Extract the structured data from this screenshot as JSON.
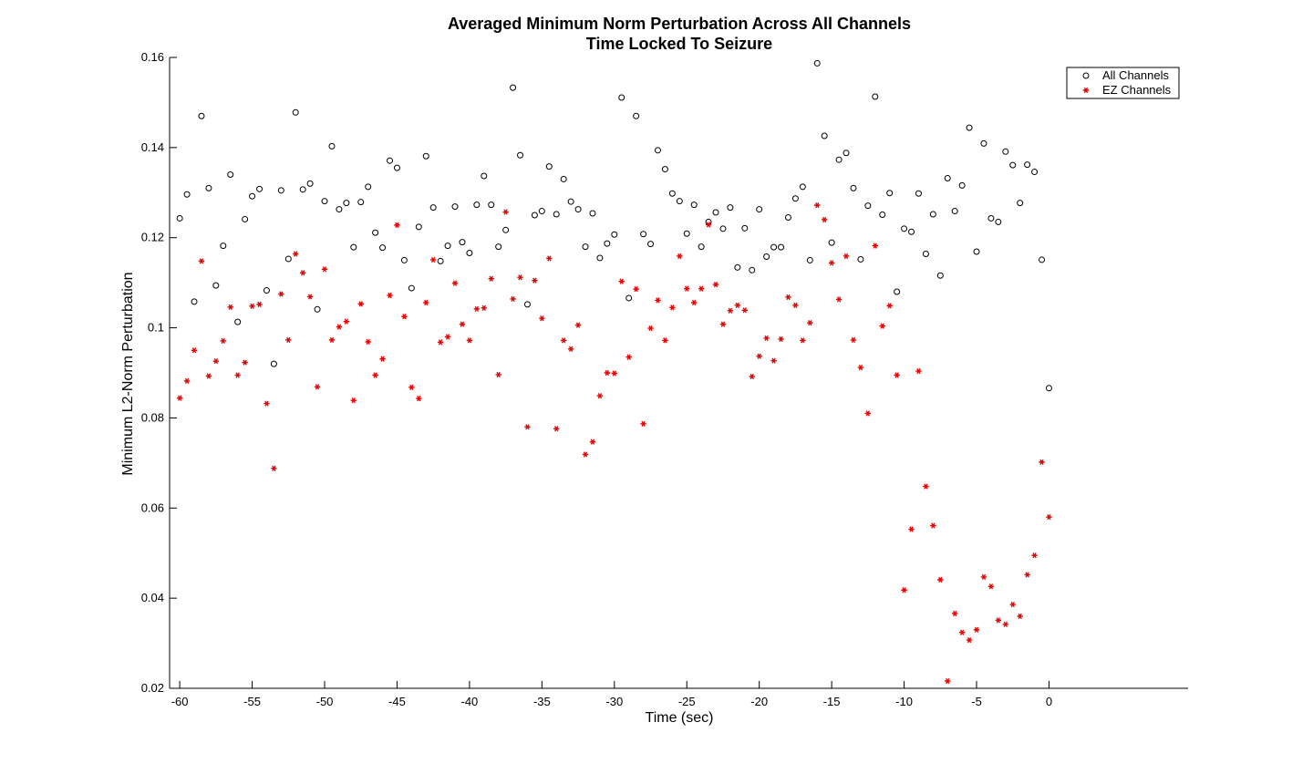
{
  "chart_data": {
    "type": "scatter",
    "title": [
      "Averaged Minimum Norm Perturbation Across All Channels",
      "Time Locked To Seizure"
    ],
    "xlabel": "Time (sec)",
    "ylabel": "Minimum L2-Norm Perturbation",
    "xlim": [
      -60.7,
      9.6
    ],
    "ylim": [
      0.02,
      0.16
    ],
    "xticks": [
      -60,
      -55,
      -50,
      -45,
      -40,
      -35,
      -30,
      -25,
      -20,
      -15,
      -10,
      -5,
      0
    ],
    "xtick_labels": [
      "-60",
      "-55",
      "-50",
      "-45",
      "-40",
      "-35",
      "-30",
      "-25",
      "-20",
      "-15",
      "-10",
      "-5",
      "0"
    ],
    "yticks": [
      0.02,
      0.04,
      0.06,
      0.08,
      0.1,
      0.12,
      0.14,
      0.16
    ],
    "ytick_labels": [
      "0.02",
      "0.04",
      "0.06",
      "0.08",
      "0.1",
      "0.12",
      "0.14",
      "0.16"
    ],
    "grid": false,
    "legend_position": "top-right",
    "x": [
      -60,
      -59.5,
      -59,
      -58.5,
      -58,
      -57.5,
      -57,
      -56.5,
      -56,
      -55.5,
      -55,
      -54.5,
      -54,
      -53.5,
      -53,
      -52.5,
      -52,
      -51.5,
      -51,
      -50.5,
      -50,
      -49.5,
      -49,
      -48.5,
      -48,
      -47.5,
      -47,
      -46.5,
      -46,
      -45.5,
      -45,
      -44.5,
      -44,
      -43.5,
      -43,
      -42.5,
      -42,
      -41.5,
      -41,
      -40.5,
      -40,
      -39.5,
      -39,
      -38.5,
      -38,
      -37.5,
      -37,
      -36.5,
      -36,
      -35.5,
      -35,
      -34.5,
      -34,
      -33.5,
      -33,
      -32.5,
      -32,
      -31.5,
      -31,
      -30.5,
      -30,
      -29.5,
      -29,
      -28.5,
      -28,
      -27.5,
      -27,
      -26.5,
      -26,
      -25.5,
      -25,
      -24.5,
      -24,
      -23.5,
      -23,
      -22.5,
      -22,
      -21.5,
      -21,
      -20.5,
      -20,
      -19.5,
      -19,
      -18.5,
      -18,
      -17.5,
      -17,
      -16.5,
      -16,
      -15.5,
      -15,
      -14.5,
      -14,
      -13.5,
      -13,
      -12.5,
      -12,
      -11.5,
      -11,
      -10.5,
      -10,
      -9.5,
      -9,
      -8.5,
      -8,
      -7.5,
      -7,
      -6.5,
      -6,
      -5.5,
      -5,
      -4.5,
      -4,
      -3.5,
      -3,
      -2.5,
      -2,
      -1.5,
      -1,
      -0.5,
      0
    ],
    "series": [
      {
        "name": "All Channels",
        "marker": "circle",
        "color": "#000000",
        "values": [
          0.1243,
          0.1296,
          0.1058,
          0.147,
          0.131,
          0.1094,
          0.1182,
          0.134,
          0.1013,
          0.1241,
          0.1292,
          0.1308,
          0.1083,
          0.092,
          0.1305,
          0.1153,
          0.1478,
          0.1307,
          0.132,
          0.1041,
          0.1281,
          0.1403,
          0.1263,
          0.1277,
          0.1179,
          0.1279,
          0.1313,
          0.1211,
          0.1178,
          0.1371,
          0.1355,
          0.115,
          0.1088,
          0.1224,
          0.1381,
          0.1267,
          0.1148,
          0.1182,
          0.1269,
          0.119,
          0.1166,
          0.1273,
          0.1337,
          0.1273,
          0.118,
          0.1217,
          0.1533,
          0.1383,
          0.1052,
          0.125,
          0.1259,
          0.1358,
          0.1252,
          0.133,
          0.128,
          0.1263,
          0.118,
          0.1254,
          0.1155,
          0.1187,
          0.1207,
          0.1511,
          0.1066,
          0.147,
          0.1208,
          0.1186,
          0.1394,
          0.1352,
          0.1298,
          0.1281,
          0.1209,
          0.1273,
          0.118,
          0.1235,
          0.1256,
          0.122,
          0.1267,
          0.1134,
          0.1221,
          0.1128,
          0.1263,
          0.1158,
          0.1179,
          0.1179,
          0.1245,
          0.1287,
          0.1313,
          0.115,
          0.1587,
          0.1426,
          0.1189,
          0.1373,
          0.1388,
          0.131,
          0.1152,
          0.1271,
          0.1513,
          0.1251,
          0.1299,
          0.108,
          0.122,
          0.1213,
          0.1298,
          0.1164,
          0.1252,
          0.1116,
          0.1332,
          0.1259,
          0.1316,
          0.1444,
          0.1169,
          0.1409,
          0.1243,
          0.1235,
          0.1391,
          0.1361,
          0.1277,
          0.1362,
          0.1346,
          0.1151,
          0.0866
        ]
      },
      {
        "name": "EZ Channels",
        "marker": "asterisk",
        "color": "#e60000",
        "values": [
          0.0844,
          0.0882,
          0.095,
          0.1148,
          0.0893,
          0.0926,
          0.0971,
          0.1046,
          0.0895,
          0.0923,
          0.1048,
          0.1052,
          0.0832,
          0.0688,
          0.1075,
          0.0973,
          0.1164,
          0.1122,
          0.1069,
          0.0869,
          0.113,
          0.0973,
          0.1002,
          0.1014,
          0.0839,
          0.1053,
          0.0969,
          0.0895,
          0.0931,
          0.1072,
          0.1228,
          0.1025,
          0.0868,
          0.0843,
          0.1056,
          0.1151,
          0.0968,
          0.098,
          0.1099,
          0.1008,
          0.0972,
          0.1042,
          0.1044,
          0.1109,
          0.0896,
          0.1257,
          0.1064,
          0.1112,
          0.078,
          0.1105,
          0.1021,
          0.1154,
          0.0776,
          0.0972,
          0.0953,
          0.1006,
          0.0719,
          0.0747,
          0.0849,
          0.09,
          0.0899,
          0.1103,
          0.0935,
          0.1086,
          0.0787,
          0.0999,
          0.1061,
          0.0972,
          0.1045,
          0.1159,
          0.1087,
          0.1056,
          0.1087,
          0.1229,
          0.1096,
          0.1008,
          0.1038,
          0.105,
          0.1039,
          0.0892,
          0.0937,
          0.0977,
          0.0927,
          0.0975,
          0.1068,
          0.105,
          0.0972,
          0.1011,
          0.1272,
          0.124,
          0.1144,
          0.1063,
          0.1159,
          0.0973,
          0.0912,
          0.081,
          0.1182,
          0.1004,
          0.1049,
          0.0895,
          0.0418,
          0.0553,
          0.0904,
          0.0648,
          0.0561,
          0.0441,
          0.0216,
          0.0366,
          0.0324,
          0.0307,
          0.033,
          0.0447,
          0.0426,
          0.0351,
          0.0342,
          0.0386,
          0.036,
          0.0452,
          0.0495,
          0.0702,
          0.058
        ]
      }
    ]
  }
}
